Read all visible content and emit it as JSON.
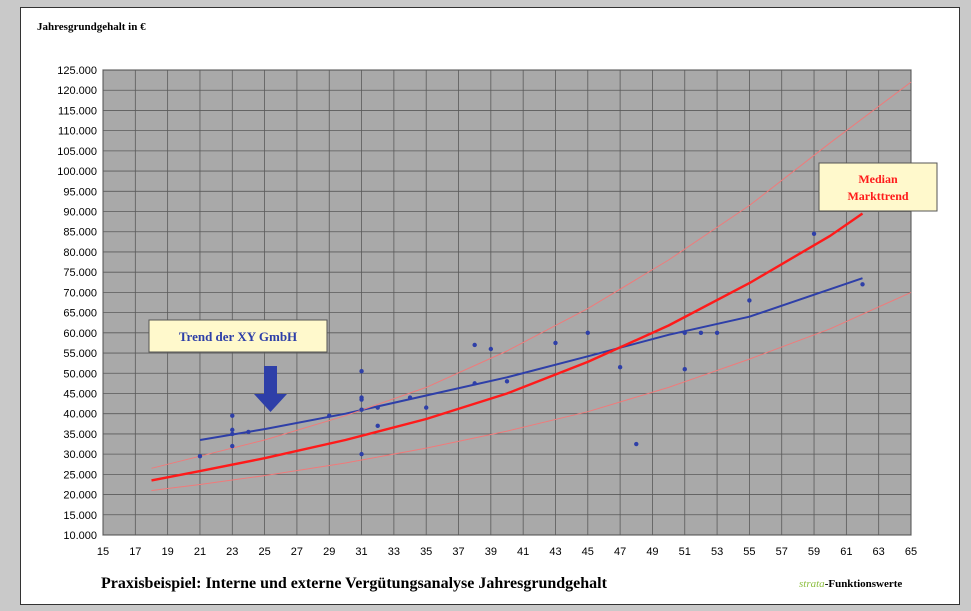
{
  "chart_data": {
    "type": "scatter",
    "ylabel": "Jahresgrundgehalt in €",
    "xlim": [
      15,
      65
    ],
    "ylim": [
      10000,
      125000
    ],
    "x_ticks": [
      "15",
      "17",
      "19",
      "21",
      "23",
      "25",
      "27",
      "29",
      "31",
      "33",
      "35",
      "37",
      "39",
      "41",
      "43",
      "45",
      "47",
      "49",
      "51",
      "53",
      "55",
      "57",
      "59",
      "61",
      "63",
      "65"
    ],
    "y_ticks": [
      "10.000",
      "15.000",
      "20.000",
      "25.000",
      "30.000",
      "35.000",
      "40.000",
      "45.000",
      "50.000",
      "55.000",
      "60.000",
      "65.000",
      "70.000",
      "75.000",
      "80.000",
      "85.000",
      "90.000",
      "95.000",
      "100.000",
      "105.000",
      "110.000",
      "115.000",
      "120.000",
      "125.000"
    ],
    "points": [
      [
        21,
        29500
      ],
      [
        23,
        32000
      ],
      [
        23,
        35000
      ],
      [
        23,
        36000
      ],
      [
        23,
        39500
      ],
      [
        24,
        35500
      ],
      [
        29,
        39500
      ],
      [
        31,
        30000
      ],
      [
        31,
        41000
      ],
      [
        31,
        43500
      ],
      [
        31,
        44000
      ],
      [
        31,
        50500
      ],
      [
        32,
        37000
      ],
      [
        32,
        41500
      ],
      [
        34,
        44000
      ],
      [
        35,
        41500
      ],
      [
        38,
        47500
      ],
      [
        38,
        57000
      ],
      [
        39,
        56000
      ],
      [
        40,
        48000
      ],
      [
        43,
        57500
      ],
      [
        45,
        60000
      ],
      [
        47,
        51500
      ],
      [
        48,
        32500
      ],
      [
        51,
        51000
      ],
      [
        51,
        60000
      ],
      [
        52,
        60000
      ],
      [
        53,
        60000
      ],
      [
        55,
        68000
      ],
      [
        59,
        84500
      ],
      [
        62,
        72000
      ]
    ],
    "series": [
      {
        "role": "trend",
        "color": "#2e3fa8",
        "points": [
          [
            21,
            33500
          ],
          [
            25,
            36200
          ],
          [
            30,
            40000
          ],
          [
            35,
            44500
          ],
          [
            40,
            49000
          ],
          [
            45,
            54200
          ],
          [
            50,
            59500
          ],
          [
            55,
            64000
          ],
          [
            62,
            73500
          ]
        ]
      },
      {
        "role": "median",
        "color": "#ff1a1a",
        "points": [
          [
            18,
            23500
          ],
          [
            21,
            25800
          ],
          [
            25,
            29000
          ],
          [
            30,
            33500
          ],
          [
            35,
            38700
          ],
          [
            40,
            45000
          ],
          [
            45,
            52800
          ],
          [
            50,
            61800
          ],
          [
            55,
            72300
          ],
          [
            60,
            84000
          ],
          [
            62,
            89500
          ]
        ]
      },
      {
        "role": "upper",
        "color": "#f07a7a",
        "points": [
          [
            18,
            26500
          ],
          [
            21,
            29500
          ],
          [
            25,
            33500
          ],
          [
            30,
            39500
          ],
          [
            35,
            46500
          ],
          [
            40,
            55500
          ],
          [
            45,
            66000
          ],
          [
            50,
            78000
          ],
          [
            55,
            91500
          ],
          [
            60,
            107000
          ],
          [
            65,
            122000
          ]
        ]
      },
      {
        "role": "lower",
        "color": "#f07a7a",
        "points": [
          [
            18,
            21000
          ],
          [
            21,
            22500
          ],
          [
            25,
            24700
          ],
          [
            30,
            27800
          ],
          [
            35,
            31500
          ],
          [
            40,
            35700
          ],
          [
            45,
            40500
          ],
          [
            50,
            46500
          ],
          [
            55,
            53500
          ],
          [
            60,
            61000
          ],
          [
            65,
            70000
          ]
        ]
      }
    ],
    "annotations": {
      "trend_label": "Trend der XY GmbH",
      "median_label_line1": "Median",
      "median_label_line2": "Markttrend"
    }
  },
  "footer": {
    "title": "Praxisbeispiel: Interne und externe Vergütungsanalyse Jahresgrundgehalt",
    "brand_em": "strata",
    "brand_rest": "-Funktionswerte"
  },
  "colors": {
    "plot_bg": "#a9a9a9",
    "grid": "#5a5a5a",
    "callout_bg": "#fff9cc",
    "arrow": "#2e3fa8"
  }
}
